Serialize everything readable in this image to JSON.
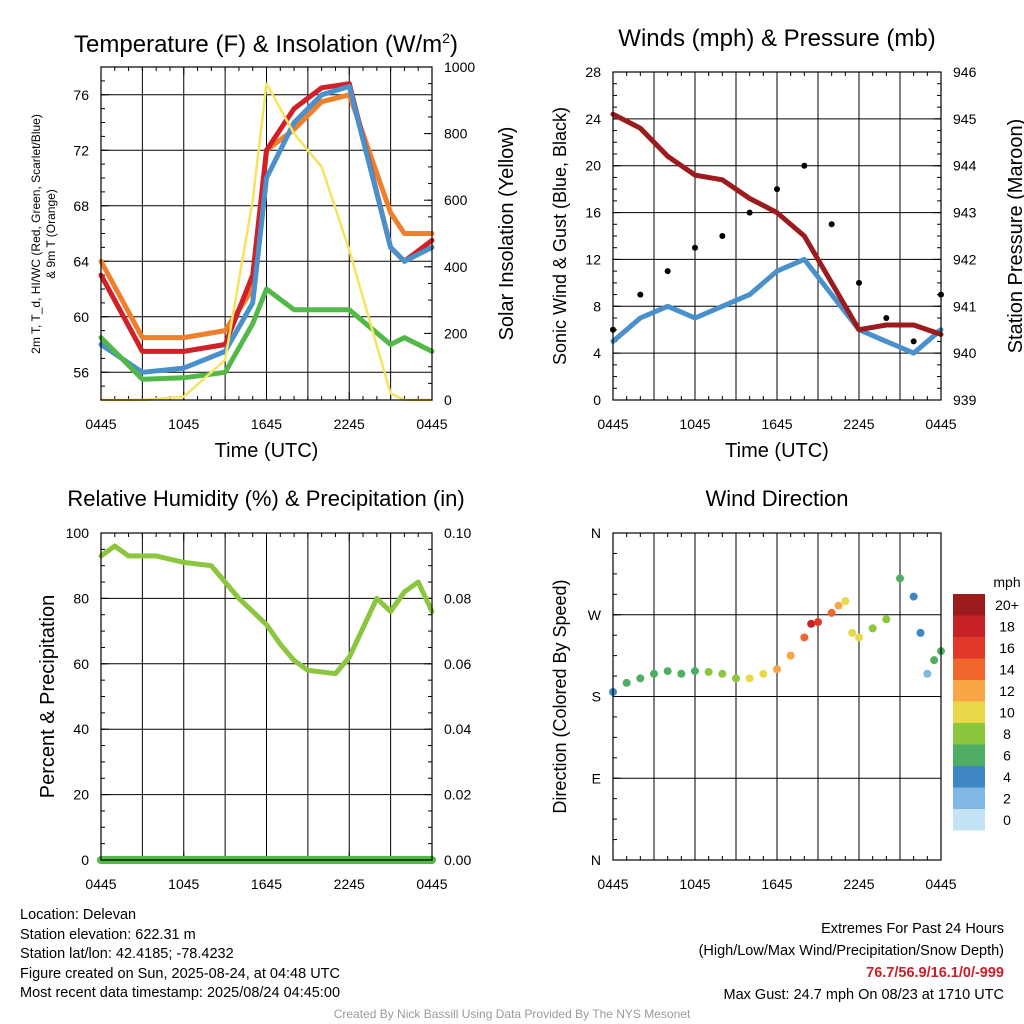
{
  "chart_data": [
    {
      "type": "line",
      "title": "Temperature (F) & Insolation (W/m²)",
      "xlabel": "Time (UTC)",
      "ylabel_left": "2m T, T_d, HI/WC (Red, Green, Scarlet/Blue) & 9m T (Orange)",
      "ylabel_right": "Solar Insolation (Yellow)",
      "x_ticks": [
        "0445",
        "1045",
        "1645",
        "2245",
        "0445"
      ],
      "ylim": [
        54,
        78
      ],
      "y_ticks": [
        "56",
        "60",
        "64",
        "68",
        "72",
        "76"
      ],
      "ylim_right": [
        0,
        1000
      ],
      "y_ticks_right": [
        "0",
        "200",
        "400",
        "600",
        "800",
        "1000"
      ],
      "x_hours": [
        0,
        3,
        6,
        9,
        11,
        12,
        14,
        16,
        18,
        21,
        22,
        24
      ],
      "series": [
        {
          "color": "#f07f2c",
          "values": [
            64,
            58.5,
            58.5,
            59,
            62,
            72,
            73.5,
            75.5,
            76,
            67.5,
            66,
            66
          ]
        },
        {
          "color": "#d12027",
          "values": [
            63,
            57.5,
            57.5,
            58,
            63,
            72,
            75,
            76.5,
            76.8,
            65,
            64,
            65.5
          ]
        },
        {
          "color": "#4a91cc",
          "values": [
            58,
            56,
            56.3,
            57.5,
            61,
            70,
            74,
            76,
            76.6,
            65,
            64,
            65
          ]
        },
        {
          "color": "#52b848",
          "values": [
            58.5,
            55.5,
            55.6,
            56,
            59.5,
            62,
            60.5,
            60.5,
            60.5,
            58,
            58.5,
            57.5
          ]
        },
        {
          "color": "#f6e35e",
          "axis": "right",
          "values": [
            0,
            0,
            10,
            120,
            600,
            950,
            800,
            700,
            450,
            20,
            0,
            0
          ]
        }
      ]
    },
    {
      "type": "line",
      "title": "Winds (mph) & Pressure (mb)",
      "xlabel": "Time (UTC)",
      "ylabel_left": "Sonic Wind & Gust (Blue, Black)",
      "ylabel_right": "Station Pressure (Maroon)",
      "x_ticks": [
        "0445",
        "1045",
        "1645",
        "2245",
        "0445"
      ],
      "ylim": [
        0,
        28
      ],
      "y_ticks": [
        "0",
        "4",
        "8",
        "12",
        "16",
        "20",
        "24",
        "28"
      ],
      "ylim_right": [
        939,
        946
      ],
      "y_ticks_right": [
        "939",
        "940",
        "941",
        "942",
        "943",
        "944",
        "945",
        "946"
      ],
      "x_hours": [
        0,
        2,
        4,
        6,
        8,
        10,
        12,
        14,
        16,
        18,
        20,
        22,
        24
      ],
      "series": [
        {
          "color": "#4a91cc",
          "values": [
            5,
            7,
            8,
            7,
            8,
            9,
            11,
            12,
            9,
            6,
            5,
            4,
            6
          ]
        },
        {
          "color": "#000000",
          "style": "points",
          "values": [
            6,
            9,
            11,
            13,
            14,
            16,
            18,
            20,
            15,
            10,
            7,
            5,
            9
          ]
        },
        {
          "color": "#9b1b1e",
          "axis": "right",
          "values": [
            945.1,
            944.8,
            944.2,
            943.8,
            943.7,
            943.3,
            943,
            942.5,
            941.5,
            940.5,
            940.6,
            940.6,
            940.4
          ]
        }
      ],
      "max_gust": 24.7
    },
    {
      "type": "line",
      "title": "Relative Humidity (%) & Precipitation (in)",
      "ylabel_left": "Percent & Precipitation",
      "x_ticks": [
        "0445",
        "1045",
        "1645",
        "2245",
        "0445"
      ],
      "ylim": [
        0,
        100
      ],
      "y_ticks": [
        "0",
        "20",
        "40",
        "60",
        "80",
        "100"
      ],
      "ylim_right": [
        0,
        0.1
      ],
      "y_ticks_right": [
        "0.00",
        "0.02",
        "0.04",
        "0.06",
        "0.08",
        "0.10"
      ],
      "x_hours": [
        0,
        1,
        2,
        4,
        6,
        8,
        10,
        12,
        13,
        14,
        15,
        17,
        18,
        20,
        21,
        22,
        23,
        24
      ],
      "series": [
        {
          "color": "#8cc63f",
          "values": [
            93,
            96,
            93,
            93,
            91,
            90,
            80,
            72,
            66,
            61,
            58,
            57,
            62,
            80,
            76,
            82,
            85,
            76
          ]
        },
        {
          "color": "#52b848",
          "axis": "right",
          "values": [
            0,
            0,
            0,
            0,
            0,
            0,
            0,
            0,
            0,
            0,
            0,
            0,
            0,
            0,
            0,
            0,
            0,
            0
          ]
        }
      ]
    },
    {
      "type": "scatter",
      "title": "Wind Direction",
      "ylabel_left": "Direction (Colored By Speed)",
      "x_ticks": [
        "0445",
        "1045",
        "1645",
        "2245",
        "0445"
      ],
      "y_ticks": [
        "N",
        "E",
        "S",
        "W",
        "N"
      ],
      "ylim": [
        0,
        360
      ],
      "points": [
        [
          0,
          185,
          4
        ],
        [
          1,
          195,
          6
        ],
        [
          2,
          200,
          5
        ],
        [
          3,
          205,
          6
        ],
        [
          4,
          208,
          5
        ],
        [
          5,
          205,
          6
        ],
        [
          6,
          208,
          6
        ],
        [
          7,
          207,
          7
        ],
        [
          8,
          205,
          7
        ],
        [
          9,
          200,
          8
        ],
        [
          10,
          200,
          10
        ],
        [
          11,
          205,
          10
        ],
        [
          12,
          210,
          12
        ],
        [
          13,
          225,
          11
        ],
        [
          14,
          245,
          14
        ],
        [
          14.5,
          260,
          17
        ],
        [
          15,
          262,
          15
        ],
        [
          16,
          272,
          13
        ],
        [
          16.5,
          280,
          11
        ],
        [
          17,
          285,
          10
        ],
        [
          17.5,
          250,
          10
        ],
        [
          18,
          245,
          9
        ],
        [
          19,
          255,
          8
        ],
        [
          20,
          265,
          7
        ],
        [
          21,
          310,
          5
        ],
        [
          22,
          290,
          4
        ],
        [
          22.5,
          250,
          3
        ],
        [
          23,
          205,
          2
        ],
        [
          23.5,
          220,
          5
        ],
        [
          24,
          230,
          6
        ]
      ],
      "colorbar": {
        "label": "mph",
        "labels": [
          "20+",
          "18",
          "16",
          "14",
          "12",
          "10",
          "8",
          "6",
          "4",
          "2",
          "0"
        ],
        "colors": [
          "#9b1b1e",
          "#c62127",
          "#e0382b",
          "#f0652c",
          "#f9a646",
          "#e8d84a",
          "#8cc63f",
          "#4fae63",
          "#3f86c4",
          "#7fb8e2",
          "#c4e4f6"
        ]
      }
    }
  ],
  "footer": {
    "location": "Location: Delevan",
    "elevation": "Station elevation: 622.31 m",
    "latlon": "Station lat/lon: 42.4185; -78.4232",
    "created": "Figure created on Sun, 2025-08-24, at 04:48 UTC",
    "recent": "Most recent data timestamp: 2025/08/24 04:45:00",
    "extremes_title": "Extremes For Past 24 Hours",
    "extremes_subtitle": "(High/Low/Max Wind/Precipitation/Snow Depth)",
    "extremes_values": "76.7/56.9/16.1/0/-999",
    "max_gust": "Max Gust: 24.7 mph On 08/23 at 1710 UTC",
    "credit": "Created By Nick Bassill Using Data Provided By The NYS Mesonet"
  }
}
